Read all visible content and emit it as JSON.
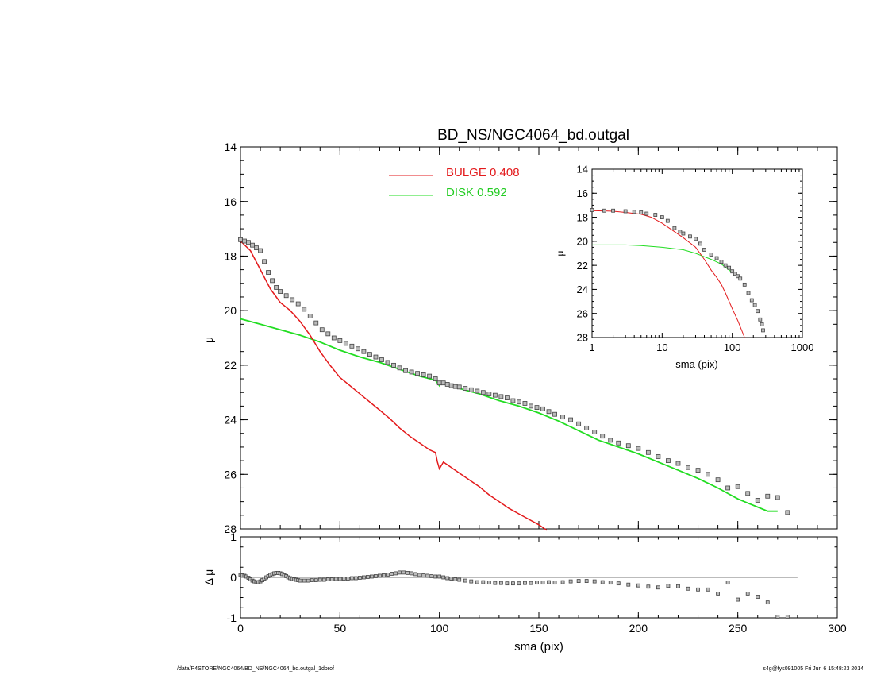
{
  "footer": {
    "left": "/data/P4STORE/NGC4064/BD_NS/NGC4064_bd.outgal_1dprof",
    "right": "s4g@fys091005  Fri Jun  6 15:48:23 2014"
  },
  "chart_data": [
    {
      "type": "line",
      "title": "BD_NS/NGC4064_bd.outgal",
      "xlabel": "",
      "ylabel": "μ",
      "xlim": [
        0,
        300
      ],
      "ylim": [
        28,
        14
      ],
      "x_ticks": [
        0,
        50,
        100,
        150,
        200,
        250,
        300
      ],
      "y_ticks": [
        14,
        16,
        18,
        20,
        22,
        24,
        26,
        28
      ],
      "legend_placement": "top-center",
      "colors": {
        "bulge": "#e31a1c",
        "disk": "#22dd22",
        "data": "#444444"
      },
      "series": [
        {
          "name": "BULGE  0.408",
          "kind": "line",
          "x": [
            0,
            5,
            10,
            15,
            18,
            20,
            25,
            30,
            35,
            40,
            45,
            50,
            55,
            60,
            65,
            70,
            75,
            80,
            85,
            90,
            95,
            98,
            99,
            100,
            102,
            105,
            110,
            115,
            120,
            125,
            130,
            135,
            140,
            145,
            150,
            154
          ],
          "y": [
            17.45,
            17.8,
            18.5,
            19.2,
            19.5,
            19.7,
            20.0,
            20.4,
            20.9,
            21.5,
            22.0,
            22.45,
            22.75,
            23.05,
            23.35,
            23.65,
            23.95,
            24.3,
            24.6,
            24.85,
            25.1,
            25.2,
            25.55,
            25.8,
            25.55,
            25.7,
            25.95,
            26.2,
            26.45,
            26.75,
            27.0,
            27.25,
            27.45,
            27.65,
            27.85,
            28.05
          ]
        },
        {
          "name": "DISK  0.592",
          "kind": "line",
          "x": [
            0,
            10,
            20,
            30,
            40,
            50,
            60,
            70,
            80,
            90,
            98,
            100,
            101,
            110,
            120,
            130,
            140,
            150,
            160,
            170,
            180,
            190,
            200,
            210,
            220,
            230,
            240,
            250,
            255,
            265,
            270
          ],
          "y": [
            20.3,
            20.5,
            20.7,
            20.9,
            21.15,
            21.45,
            21.7,
            21.9,
            22.15,
            22.4,
            22.55,
            22.75,
            22.6,
            22.85,
            23.05,
            23.3,
            23.5,
            23.75,
            24.05,
            24.4,
            24.75,
            25.0,
            25.25,
            25.55,
            25.85,
            26.15,
            26.5,
            26.9,
            27.05,
            27.35,
            27.35
          ]
        },
        {
          "name": "",
          "kind": "points",
          "x": [
            0,
            2,
            4,
            6,
            8,
            10,
            12,
            14,
            16,
            18,
            20,
            23,
            26,
            29,
            32,
            35,
            38,
            41,
            44,
            47,
            50,
            53,
            56,
            59,
            62,
            65,
            68,
            71,
            74,
            77,
            80,
            83,
            86,
            89,
            92,
            95,
            98,
            100,
            102,
            104,
            106,
            108,
            110,
            113,
            116,
            119,
            122,
            125,
            128,
            131,
            134,
            137,
            140,
            143,
            146,
            149,
            152,
            155,
            158,
            162,
            166,
            170,
            174,
            178,
            182,
            186,
            190,
            195,
            200,
            205,
            210,
            215,
            220,
            225,
            230,
            235,
            240,
            245,
            250,
            255,
            260,
            265,
            270,
            275
          ],
          "y": [
            17.4,
            17.45,
            17.5,
            17.6,
            17.7,
            17.8,
            18.2,
            18.6,
            18.9,
            19.15,
            19.3,
            19.45,
            19.6,
            19.75,
            19.95,
            20.2,
            20.45,
            20.7,
            20.85,
            21.0,
            21.1,
            21.2,
            21.3,
            21.4,
            21.5,
            21.6,
            21.7,
            21.8,
            21.9,
            22.0,
            22.1,
            22.2,
            22.25,
            22.3,
            22.35,
            22.4,
            22.5,
            22.65,
            22.65,
            22.7,
            22.75,
            22.78,
            22.8,
            22.85,
            22.9,
            22.95,
            23.0,
            23.05,
            23.1,
            23.15,
            23.2,
            23.3,
            23.35,
            23.4,
            23.5,
            23.55,
            23.6,
            23.7,
            23.8,
            23.9,
            24.0,
            24.15,
            24.3,
            24.45,
            24.6,
            24.75,
            24.85,
            24.95,
            25.05,
            25.2,
            25.35,
            25.5,
            25.6,
            25.75,
            25.85,
            26.0,
            26.2,
            26.5,
            26.45,
            26.7,
            26.95,
            26.8,
            26.85,
            27.4
          ]
        }
      ]
    },
    {
      "type": "line",
      "title": "",
      "xlabel": "sma (pix)",
      "ylabel": "μ",
      "x_scale": "log",
      "xlim": [
        1,
        1000
      ],
      "ylim": [
        28,
        14
      ],
      "x_ticks": [
        1,
        10,
        100,
        1000
      ],
      "y_ticks": [
        14,
        16,
        18,
        20,
        22,
        24,
        26,
        28
      ],
      "series": [
        {
          "name": "",
          "kind": "line",
          "x": [
            1,
            2,
            3,
            5,
            7,
            10,
            15,
            20,
            30,
            40,
            50,
            60,
            70,
            80,
            100,
            120,
            150
          ],
          "y": [
            17.45,
            17.5,
            17.6,
            17.75,
            18.0,
            18.5,
            19.2,
            19.7,
            20.5,
            21.5,
            22.4,
            23.0,
            23.6,
            24.3,
            25.6,
            26.6,
            28.0
          ]
        },
        {
          "name": "",
          "kind": "line",
          "x": [
            1,
            3,
            5,
            10,
            20,
            30,
            50,
            70,
            100,
            130
          ],
          "y": [
            20.3,
            20.3,
            20.35,
            20.5,
            20.7,
            21.0,
            21.5,
            21.9,
            22.6,
            23.0
          ]
        },
        {
          "name": "",
          "kind": "points",
          "x": [
            1,
            1.5,
            2,
            3,
            4,
            5,
            6,
            8,
            10,
            12,
            15,
            18,
            20,
            25,
            30,
            35,
            40,
            50,
            60,
            70,
            80,
            90,
            100,
            110,
            120,
            130,
            150,
            170,
            190,
            210,
            230,
            250,
            265,
            275
          ],
          "y": [
            17.4,
            17.45,
            17.45,
            17.5,
            17.55,
            17.6,
            17.7,
            17.8,
            18.0,
            18.3,
            18.9,
            19.2,
            19.35,
            19.6,
            19.8,
            20.2,
            20.7,
            21.1,
            21.4,
            21.7,
            22.0,
            22.2,
            22.5,
            22.7,
            22.9,
            23.1,
            23.6,
            24.3,
            24.9,
            25.3,
            25.8,
            26.5,
            26.9,
            27.4
          ]
        }
      ]
    },
    {
      "type": "scatter",
      "title": "",
      "xlabel": "sma (pix)",
      "ylabel": "Δ μ",
      "xlim": [
        0,
        300
      ],
      "ylim": [
        -1,
        1
      ],
      "x_ticks": [
        0,
        50,
        100,
        150,
        200,
        250,
        300
      ],
      "y_ticks": [
        -1,
        0,
        1
      ],
      "zero_line": {
        "x": [
          0,
          280
        ],
        "y": 0
      },
      "series": [
        {
          "name": "",
          "kind": "points",
          "x": [
            0,
            1,
            2,
            3,
            4,
            5,
            6,
            7,
            8,
            9,
            10,
            11,
            12,
            13,
            14,
            15,
            16,
            17,
            18,
            19,
            20,
            21,
            22,
            23,
            24,
            25,
            26,
            27,
            28,
            29,
            30,
            32,
            34,
            36,
            38,
            40,
            42,
            44,
            46,
            48,
            50,
            52,
            54,
            56,
            58,
            60,
            62,
            64,
            66,
            68,
            70,
            72,
            74,
            76,
            78,
            80,
            82,
            84,
            86,
            88,
            90,
            92,
            94,
            96,
            98,
            100,
            102,
            104,
            106,
            108,
            110,
            113,
            116,
            119,
            122,
            125,
            128,
            131,
            134,
            137,
            140,
            143,
            146,
            149,
            152,
            155,
            158,
            162,
            166,
            170,
            174,
            178,
            182,
            186,
            190,
            195,
            200,
            205,
            210,
            215,
            220,
            225,
            230,
            235,
            240,
            245,
            250,
            255,
            260,
            265,
            270,
            275
          ],
          "y": [
            0.06,
            0.05,
            0.04,
            0.02,
            -0.01,
            -0.05,
            -0.08,
            -0.1,
            -0.12,
            -0.12,
            -0.1,
            -0.07,
            -0.03,
            0.0,
            0.03,
            0.06,
            0.08,
            0.1,
            0.11,
            0.11,
            0.1,
            0.08,
            0.05,
            0.03,
            0.0,
            -0.02,
            -0.04,
            -0.05,
            -0.06,
            -0.07,
            -0.08,
            -0.08,
            -0.08,
            -0.07,
            -0.07,
            -0.06,
            -0.06,
            -0.05,
            -0.05,
            -0.04,
            -0.04,
            -0.03,
            -0.03,
            -0.02,
            -0.02,
            -0.01,
            0.0,
            0.01,
            0.02,
            0.03,
            0.04,
            0.05,
            0.07,
            0.09,
            0.1,
            0.12,
            0.12,
            0.11,
            0.1,
            0.08,
            0.06,
            0.05,
            0.04,
            0.03,
            0.02,
            0.02,
            0.0,
            -0.02,
            -0.03,
            -0.05,
            -0.06,
            -0.08,
            -0.1,
            -0.12,
            -0.12,
            -0.13,
            -0.14,
            -0.14,
            -0.15,
            -0.15,
            -0.15,
            -0.14,
            -0.14,
            -0.13,
            -0.13,
            -0.12,
            -0.13,
            -0.12,
            -0.1,
            -0.09,
            -0.09,
            -0.1,
            -0.12,
            -0.13,
            -0.15,
            -0.18,
            -0.2,
            -0.23,
            -0.25,
            -0.21,
            -0.22,
            -0.28,
            -0.3,
            -0.3,
            -0.4,
            -0.13,
            -0.55,
            -0.4,
            -0.48,
            -0.62,
            -0.97,
            -0.97
          ]
        }
      ]
    }
  ]
}
